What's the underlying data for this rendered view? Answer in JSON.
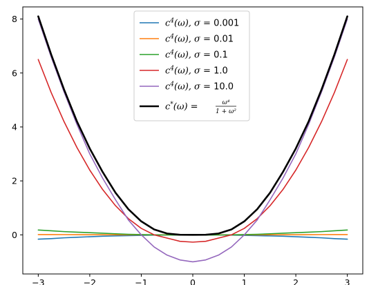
{
  "chart_data": {
    "type": "line",
    "title": "",
    "xlabel": "",
    "ylabel": "",
    "xlim": [
      -3.3,
      3.3
    ],
    "ylim": [
      -1.45,
      8.45
    ],
    "xticks": [
      -3,
      -2,
      -1,
      0,
      1,
      2,
      3
    ],
    "xtick_labels": [
      "−3",
      "−2",
      "−1",
      "0",
      "1",
      "2",
      "3"
    ],
    "yticks": [
      0,
      2,
      4,
      6,
      8
    ],
    "ytick_labels": [
      "0",
      "2",
      "4",
      "6",
      "8"
    ],
    "grid": false,
    "legend_position": "top-center",
    "x": [
      -3.0,
      -2.75,
      -2.5,
      -2.25,
      -2.0,
      -1.75,
      -1.5,
      -1.25,
      -1.0,
      -0.75,
      -0.5,
      -0.25,
      0.0,
      0.25,
      0.5,
      0.75,
      1.0,
      1.25,
      1.5,
      1.75,
      2.0,
      2.25,
      2.5,
      2.75,
      3.0
    ],
    "series": [
      {
        "name_parts": {
          "c": "c",
          "sup": "4",
          "arg": "(ω), σ = ",
          "val": "0.001"
        },
        "color": "#1f77b4",
        "values": [
          -0.16,
          -0.14,
          -0.11,
          -0.09,
          -0.07,
          -0.05,
          -0.04,
          -0.03,
          -0.02,
          -0.01,
          -0.005,
          -0.001,
          0.0,
          -0.001,
          -0.005,
          -0.01,
          -0.02,
          -0.03,
          -0.04,
          -0.05,
          -0.07,
          -0.09,
          -0.11,
          -0.14,
          -0.16
        ]
      },
      {
        "name_parts": {
          "c": "c",
          "sup": "4",
          "arg": "(ω), σ = ",
          "val": "0.01"
        },
        "color": "#ff7f0e",
        "values": [
          0.01,
          0.01,
          0.008,
          0.006,
          0.004,
          0.003,
          0.002,
          0.001,
          0.0,
          0.0,
          -0.001,
          -0.001,
          -0.001,
          -0.001,
          -0.001,
          0.0,
          0.0,
          0.001,
          0.002,
          0.003,
          0.004,
          0.006,
          0.008,
          0.01,
          0.01
        ]
      },
      {
        "name_parts": {
          "c": "c",
          "sup": "4",
          "arg": "(ω), σ = ",
          "val": "0.1"
        },
        "color": "#2ca02c",
        "values": [
          0.18,
          0.15,
          0.12,
          0.1,
          0.08,
          0.06,
          0.04,
          0.02,
          0.01,
          0.0,
          -0.005,
          -0.008,
          -0.01,
          -0.008,
          -0.005,
          0.0,
          0.01,
          0.02,
          0.04,
          0.06,
          0.08,
          0.1,
          0.12,
          0.15,
          0.18
        ]
      },
      {
        "name_parts": {
          "c": "c",
          "sup": "4",
          "arg": "(ω), σ = ",
          "val": "1.0"
        },
        "color": "#d62728",
        "values": [
          6.5,
          5.28,
          4.2,
          3.24,
          2.4,
          1.68,
          1.08,
          0.6,
          0.24,
          0.0,
          -0.12,
          -0.24,
          -0.27,
          -0.24,
          -0.12,
          0.0,
          0.24,
          0.6,
          1.08,
          1.68,
          2.4,
          3.24,
          4.2,
          5.28,
          6.5
        ]
      },
      {
        "name_parts": {
          "c": "c",
          "sup": "4",
          "arg": "(ω), σ = ",
          "val": "10.0"
        },
        "color": "#9467bd",
        "values": [
          8.0,
          6.6,
          5.3,
          4.1,
          3.0,
          2.1,
          1.3,
          0.55,
          0.0,
          -0.45,
          -0.75,
          -0.93,
          -1.0,
          -0.93,
          -0.75,
          -0.45,
          0.0,
          0.55,
          1.3,
          2.1,
          3.0,
          4.1,
          5.3,
          6.6,
          8.0
        ]
      },
      {
        "name_parts": {
          "c": "c",
          "sup": "*",
          "arg": "(ω) = ",
          "frac_num": "ω⁴",
          "frac_den": "1 + ω²"
        },
        "color": "#000000",
        "bold": true,
        "values": [
          8.1,
          6.69,
          5.39,
          4.21,
          3.2,
          2.33,
          1.56,
          0.95,
          0.5,
          0.2,
          0.05,
          0.004,
          0.0,
          0.004,
          0.05,
          0.2,
          0.5,
          0.95,
          1.56,
          2.33,
          3.2,
          4.21,
          5.39,
          6.69,
          8.1
        ]
      }
    ]
  }
}
